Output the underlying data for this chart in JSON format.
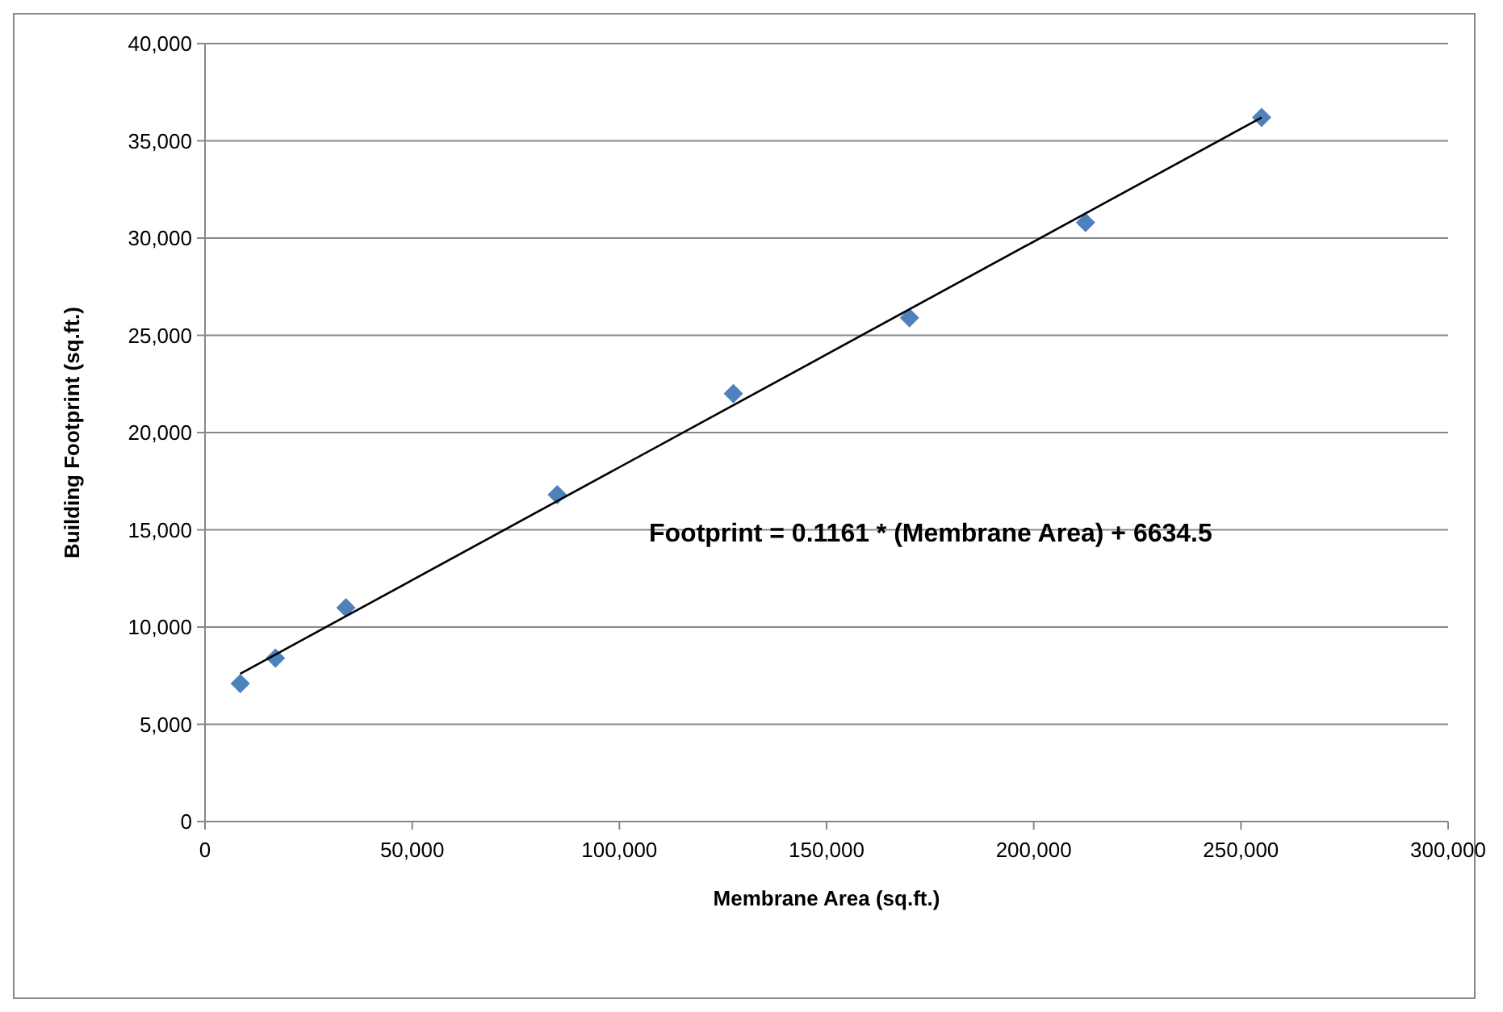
{
  "chart_data": {
    "type": "scatter",
    "xlabel": "Membrane Area (sq.ft.)",
    "ylabel": "Building Footprint (sq.ft.)",
    "x": [
      8500,
      17000,
      34000,
      85000,
      127500,
      170000,
      212500,
      255000
    ],
    "series": [
      {
        "color": "#4f81bd",
        "marker": "diamond",
        "values": [
          7100,
          8400,
          11000,
          16800,
          22000,
          25900,
          30800,
          36200
        ]
      },
      {
        "type": "line",
        "color": "#000000",
        "marker": "none",
        "x": [
          8500,
          255000
        ],
        "values": [
          7600,
          36200
        ]
      }
    ],
    "xlim": [
      0,
      300000
    ],
    "xticks": [
      {
        "value": 0,
        "label": "0"
      },
      {
        "value": 50000,
        "label": "50,000"
      },
      {
        "value": 100000,
        "label": "100,000"
      },
      {
        "value": 150000,
        "label": "150,000"
      },
      {
        "value": 200000,
        "label": "200,000"
      },
      {
        "value": 250000,
        "label": "250,000"
      },
      {
        "value": 300000,
        "label": "300,000"
      }
    ],
    "ylim": [
      0,
      40000
    ],
    "yticks": [
      {
        "value": 0,
        "label": "0"
      },
      {
        "value": 5000,
        "label": "5,000"
      },
      {
        "value": 10000,
        "label": "10,000"
      },
      {
        "value": 15000,
        "label": "15,000"
      },
      {
        "value": 20000,
        "label": "20,000"
      },
      {
        "value": 25000,
        "label": "25,000"
      },
      {
        "value": 30000,
        "label": "30,000"
      },
      {
        "value": 35000,
        "label": "35,000"
      },
      {
        "value": 40000,
        "label": "40,000"
      }
    ],
    "grid": "y",
    "annotations": [
      "Footprint = 0.1161 * (Membrane Area) + 6634.5"
    ]
  }
}
